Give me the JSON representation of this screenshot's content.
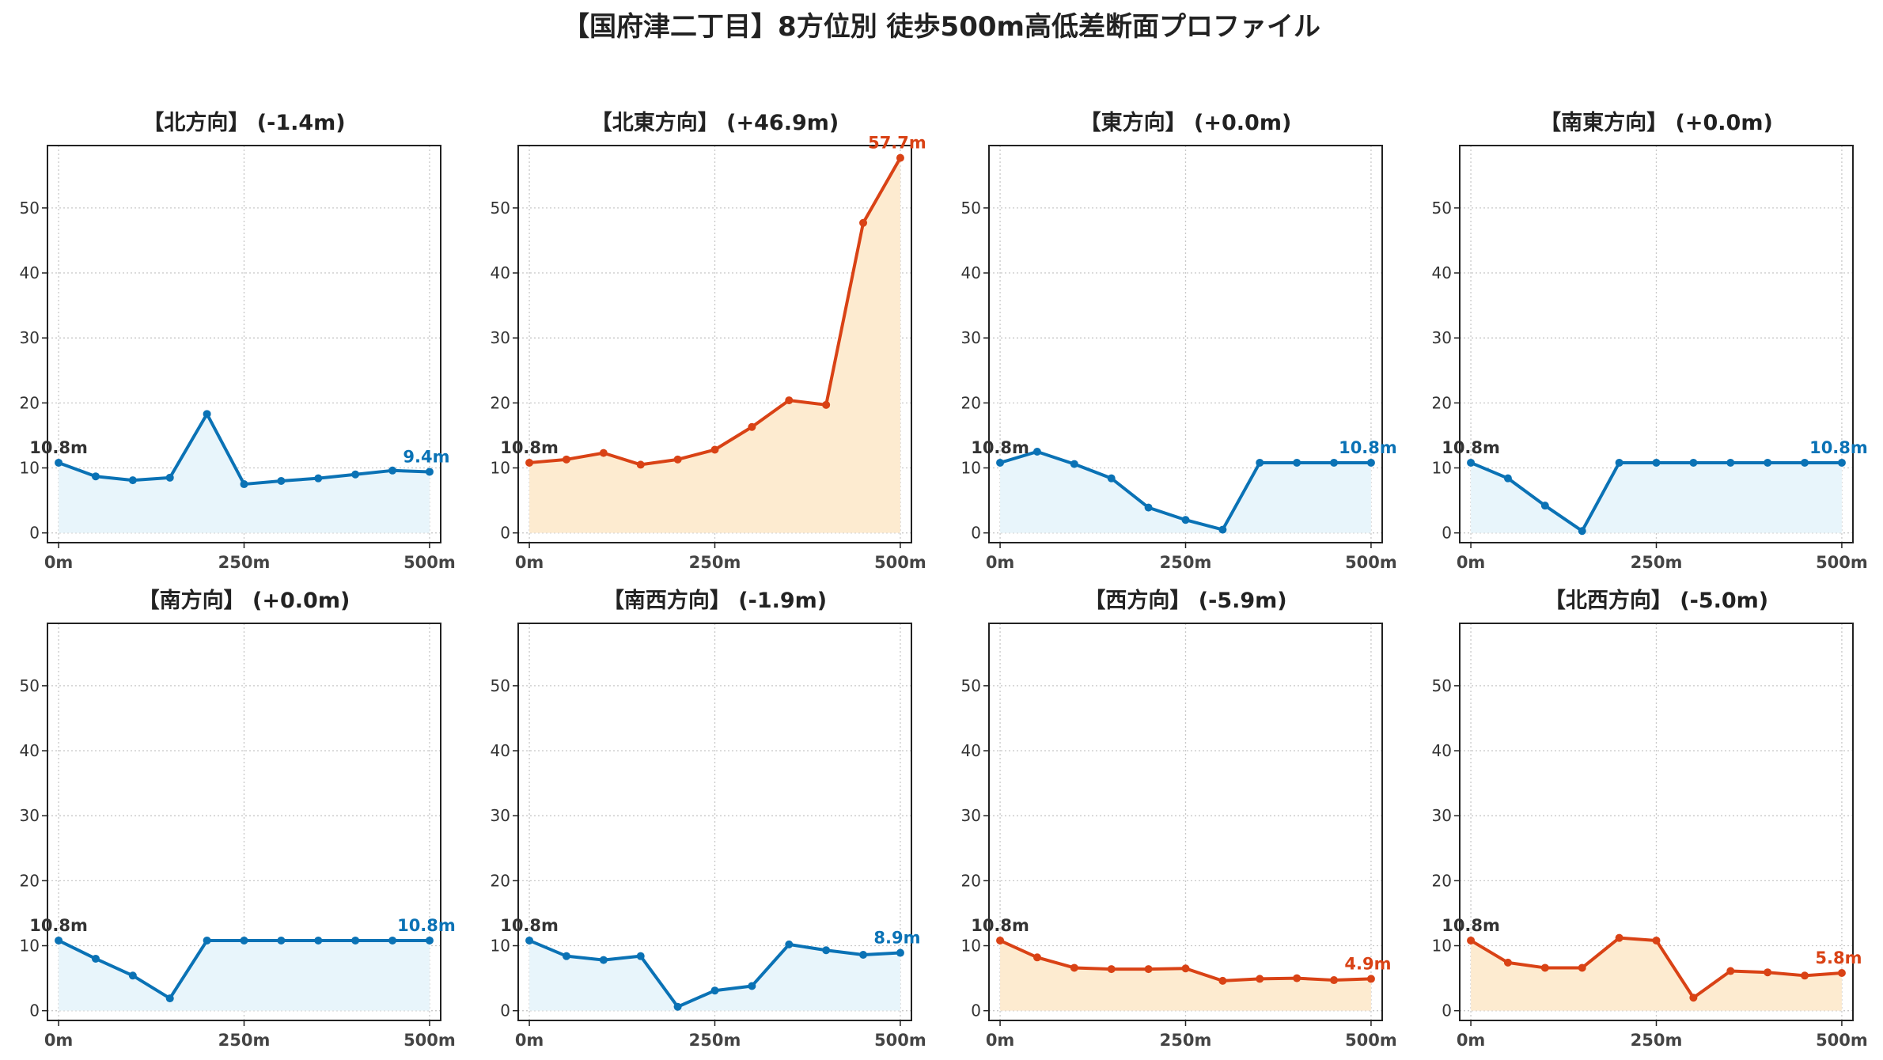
{
  "figure": {
    "title": "【国府津二丁目】8方位別 徒歩500m高低差断面プロファイル"
  },
  "colors": {
    "up_line": "#d94215",
    "up_fill": "#fdebd0",
    "down_line": "#0a72b5",
    "down_fill": "#e8f5fb",
    "start_label": "#333333",
    "grid": "#c8c8c8",
    "axis": "#222222"
  },
  "axes": {
    "x_ticks": [
      0,
      250,
      500
    ],
    "x_tick_labels": [
      "0m",
      "250m",
      "500m"
    ],
    "y_ticks": [
      0,
      10,
      20,
      30,
      40,
      50
    ],
    "y_tick_labels": [
      "0",
      "10",
      "20",
      "30",
      "40",
      "50"
    ],
    "xlim": [
      -15,
      515
    ],
    "ylim": [
      -1.5,
      59.6
    ],
    "grid": true
  },
  "chart_data": [
    {
      "type": "line",
      "title": "【北方向】 (-1.4m)",
      "trend": "down",
      "x": [
        0,
        50,
        100,
        150,
        200,
        250,
        300,
        350,
        400,
        450,
        500
      ],
      "y": [
        10.8,
        8.7,
        8.1,
        8.5,
        18.3,
        7.5,
        8.0,
        8.4,
        9.0,
        9.6,
        9.4
      ],
      "start_label": "10.8m",
      "end_label": "9.4m"
    },
    {
      "type": "line",
      "title": "【北東方向】 (+46.9m)",
      "trend": "up",
      "x": [
        0,
        50,
        100,
        150,
        200,
        250,
        300,
        350,
        400,
        450,
        500
      ],
      "y": [
        10.8,
        11.3,
        12.3,
        10.5,
        11.3,
        12.8,
        16.3,
        20.4,
        19.7,
        47.7,
        57.7
      ],
      "start_label": "10.8m",
      "end_label": "57.7m"
    },
    {
      "type": "line",
      "title": "【東方向】 (+0.0m)",
      "trend": "down",
      "x": [
        0,
        50,
        100,
        150,
        200,
        250,
        300,
        350,
        400,
        450,
        500
      ],
      "y": [
        10.8,
        12.5,
        10.6,
        8.4,
        3.9,
        2.0,
        0.5,
        10.8,
        10.8,
        10.8,
        10.8
      ],
      "start_label": "10.8m",
      "end_label": "10.8m"
    },
    {
      "type": "line",
      "title": "【南東方向】 (+0.0m)",
      "trend": "down",
      "x": [
        0,
        50,
        100,
        150,
        200,
        250,
        300,
        350,
        400,
        450,
        500
      ],
      "y": [
        10.8,
        8.4,
        4.2,
        0.3,
        10.8,
        10.8,
        10.8,
        10.8,
        10.8,
        10.8,
        10.8
      ],
      "start_label": "10.8m",
      "end_label": "10.8m"
    },
    {
      "type": "line",
      "title": "【南方向】 (+0.0m)",
      "trend": "down",
      "x": [
        0,
        50,
        100,
        150,
        200,
        250,
        300,
        350,
        400,
        450,
        500
      ],
      "y": [
        10.8,
        8.0,
        5.4,
        1.9,
        10.8,
        10.8,
        10.8,
        10.8,
        10.8,
        10.8,
        10.8
      ],
      "start_label": "10.8m",
      "end_label": "10.8m"
    },
    {
      "type": "line",
      "title": "【南西方向】 (-1.9m)",
      "trend": "down",
      "x": [
        0,
        50,
        100,
        150,
        200,
        250,
        300,
        350,
        400,
        450,
        500
      ],
      "y": [
        10.8,
        8.4,
        7.8,
        8.4,
        0.6,
        3.1,
        3.8,
        10.2,
        9.3,
        8.6,
        8.9
      ],
      "start_label": "10.8m",
      "end_label": "8.9m"
    },
    {
      "type": "line",
      "title": "【西方向】 (-5.9m)",
      "trend": "up",
      "x": [
        0,
        50,
        100,
        150,
        200,
        250,
        300,
        350,
        400,
        450,
        500
      ],
      "y": [
        10.8,
        8.2,
        6.6,
        6.4,
        6.4,
        6.5,
        4.6,
        4.9,
        5.0,
        4.7,
        4.9
      ],
      "start_label": "10.8m",
      "end_label": "4.9m"
    },
    {
      "type": "line",
      "title": "【北西方向】 (-5.0m)",
      "trend": "up",
      "x": [
        0,
        50,
        100,
        150,
        200,
        250,
        300,
        350,
        400,
        450,
        500
      ],
      "y": [
        10.8,
        7.4,
        6.6,
        6.6,
        11.2,
        10.8,
        2.0,
        6.1,
        5.9,
        5.4,
        5.8
      ],
      "start_label": "10.8m",
      "end_label": "5.8m"
    }
  ]
}
